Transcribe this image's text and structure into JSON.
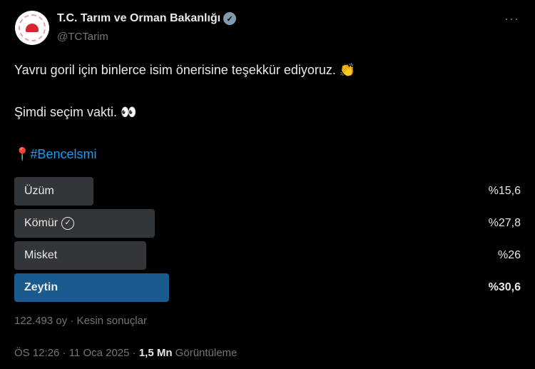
{
  "author": {
    "name": "T.C. Tarım ve Orman Bakanlığı",
    "handle": "@TCTarim",
    "verified": true
  },
  "more_label": "···",
  "tweet": {
    "line1": "Yavru goril için binlerce isim önerisine teşekkür ediyoruz. 👏",
    "line2": "Şimdi seçim vakti. 👀",
    "pin": "📍",
    "hashtag": "#Bencelsmi"
  },
  "poll": {
    "options": [
      {
        "label": "Üzüm",
        "percent_label": "%15,6",
        "percent": 15.6
      },
      {
        "label": "Kömür",
        "percent_label": "%27,8",
        "percent": 27.8,
        "voted": true
      },
      {
        "label": "Misket",
        "percent_label": "%26",
        "percent": 26
      },
      {
        "label": "Zeytin",
        "percent_label": "%30,6",
        "percent": 30.6,
        "winner": true
      }
    ],
    "summary": "122.493 oy · Kesin sonuçlar"
  },
  "footer": {
    "time": "ÖS 12:26 · 11 Oca 2025 · ",
    "views": "1,5 Mn",
    "views_label": " Görüntüleme"
  },
  "colors": {
    "bar": "#333639",
    "winner": "#1a5a8e",
    "link": "#1d9bf0"
  }
}
